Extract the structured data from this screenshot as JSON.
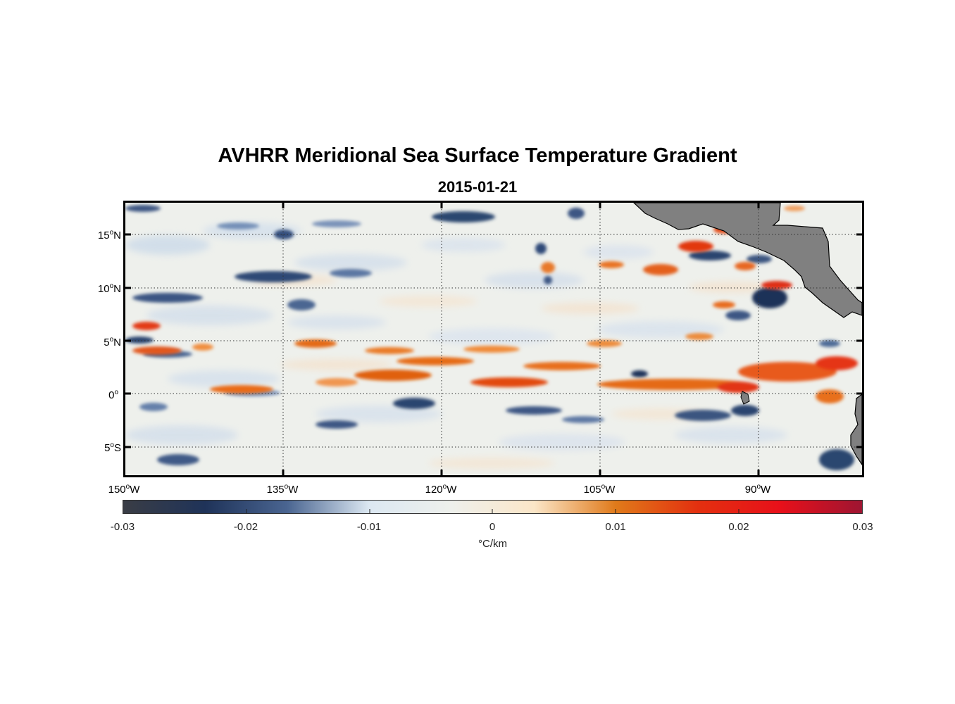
{
  "map": {
    "title": "AVHRR Meridional Sea Surface Temperature Gradient",
    "date": "2015-01-21",
    "extent": {
      "lon_min": -150,
      "lon_max": -80,
      "lat_min": -8,
      "lat_max": 18
    },
    "lat_ticks": [
      {
        "value": 15,
        "label": "15",
        "suffix": "N"
      },
      {
        "value": 10,
        "label": "10",
        "suffix": "N"
      },
      {
        "value": 5,
        "label": "5",
        "suffix": "N"
      },
      {
        "value": 0,
        "label": "0",
        "suffix": ""
      },
      {
        "value": -5,
        "label": "5",
        "suffix": "S"
      }
    ],
    "lon_ticks": [
      {
        "value": -150,
        "label": "150",
        "suffix": "W"
      },
      {
        "value": -135,
        "label": "135",
        "suffix": "W"
      },
      {
        "value": -120,
        "label": "120",
        "suffix": "W"
      },
      {
        "value": -105,
        "label": "105",
        "suffix": "W"
      },
      {
        "value": -90,
        "label": "90",
        "suffix": "W"
      }
    ],
    "degree_symbol": "o",
    "land_color": "#808080",
    "colorbar": {
      "ticks": [
        "-0.03",
        "-0.02",
        "-0.01",
        "0",
        "0.01",
        "0.02",
        "0.03"
      ],
      "unit": "°C/km",
      "colors": [
        "#3a3d45",
        "#1f3359",
        "#4a6591",
        "#dce8f2",
        "#eef0ec",
        "#fbe6c8",
        "#e07a1a",
        "#e3300f",
        "#e8101a",
        "#9e1532"
      ]
    }
  }
}
